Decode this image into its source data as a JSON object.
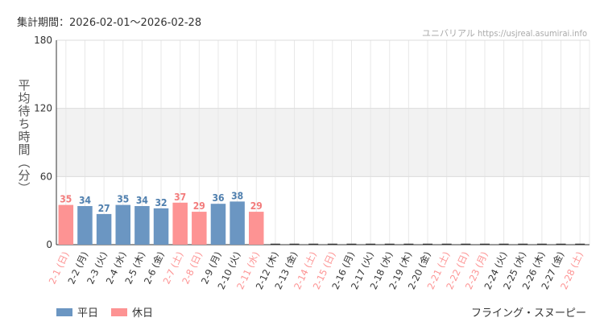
{
  "header": {
    "period": "集計期間：2026-02-01〜2026-02-28",
    "site": "ユニバリアル  https://usjreal.asumirai.info"
  },
  "footer": {
    "attraction": "フライング・スヌーピー"
  },
  "colors": {
    "weekday": "#6b96c2",
    "holiday": "#fd9393",
    "weekday_label": "#4f7fae",
    "holiday_label": "#f27c7c",
    "band": "#f2f2f2"
  },
  "chart_data": {
    "type": "bar",
    "ylabel": "平均待ち時間（分）",
    "ylim": [
      0,
      180
    ],
    "yticks": [
      0,
      60,
      120,
      180
    ],
    "highlight_band": [
      60,
      120
    ],
    "grid": true,
    "legend": [
      {
        "name": "平日",
        "type": "weekday"
      },
      {
        "name": "休日",
        "type": "holiday"
      }
    ],
    "categories": [
      "2-1 (日)",
      "2-2 (月)",
      "2-3 (火)",
      "2-4 (水)",
      "2-5 (木)",
      "2-6 (金)",
      "2-7 (土)",
      "2-8 (日)",
      "2-9 (月)",
      "2-10 (火)",
      "2-11 (水)",
      "2-12 (木)",
      "2-13 (金)",
      "2-14 (土)",
      "2-15 (日)",
      "2-16 (月)",
      "2-17 (火)",
      "2-18 (水)",
      "2-19 (木)",
      "2-20 (金)",
      "2-21 (土)",
      "2-22 (日)",
      "2-23 (月)",
      "2-24 (火)",
      "2-25 (水)",
      "2-26 (木)",
      "2-27 (金)",
      "2-28 (土)"
    ],
    "day_type": [
      "holiday",
      "weekday",
      "weekday",
      "weekday",
      "weekday",
      "weekday",
      "holiday",
      "holiday",
      "weekday",
      "weekday",
      "holiday",
      "weekday",
      "weekday",
      "holiday",
      "holiday",
      "weekday",
      "weekday",
      "weekday",
      "weekday",
      "weekday",
      "holiday",
      "holiday",
      "holiday",
      "weekday",
      "weekday",
      "weekday",
      "weekday",
      "holiday"
    ],
    "values": [
      35,
      34,
      27,
      35,
      34,
      32,
      37,
      29,
      36,
      38,
      29,
      null,
      null,
      null,
      null,
      null,
      null,
      null,
      null,
      null,
      null,
      null,
      null,
      null,
      null,
      null,
      null,
      null
    ]
  }
}
